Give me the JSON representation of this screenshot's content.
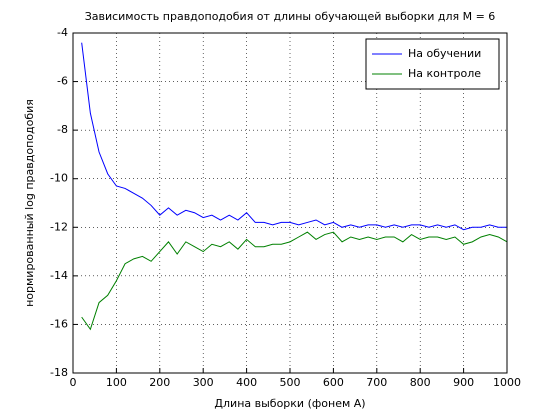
{
  "chart_data": {
    "type": "line",
    "title": "Зависимость правдоподобия от длины обучающей выборки для M = 6",
    "x_label": "Длина выборки (фонем A)",
    "y_label": "нормированный log правдоподобия",
    "x": [
      20,
      40,
      60,
      80,
      100,
      120,
      140,
      160,
      180,
      200,
      220,
      240,
      260,
      280,
      300,
      320,
      340,
      360,
      380,
      400,
      420,
      440,
      460,
      480,
      500,
      520,
      540,
      560,
      580,
      600,
      620,
      640,
      660,
      680,
      700,
      720,
      740,
      760,
      780,
      800,
      820,
      840,
      860,
      880,
      900,
      920,
      940,
      960,
      980,
      1000
    ],
    "series": [
      {
        "name": "На обучении",
        "color": "#0000ff",
        "values": [
          -4.4,
          -7.3,
          -8.9,
          -9.8,
          -10.3,
          -10.4,
          -10.6,
          -10.8,
          -11.1,
          -11.5,
          -11.2,
          -11.5,
          -11.3,
          -11.4,
          -11.6,
          -11.5,
          -11.7,
          -11.5,
          -11.7,
          -11.4,
          -11.8,
          -11.8,
          -11.9,
          -11.8,
          -11.8,
          -11.9,
          -11.8,
          -11.7,
          -11.9,
          -11.8,
          -12.0,
          -11.9,
          -12.0,
          -11.9,
          -11.9,
          -12.0,
          -11.9,
          -12.0,
          -11.9,
          -11.9,
          -12.0,
          -11.9,
          -12.0,
          -11.9,
          -12.1,
          -12.0,
          -12.0,
          -11.9,
          -12.0,
          -12.0
        ]
      },
      {
        "name": "На контроле",
        "color": "#008000",
        "values": [
          -15.7,
          -16.2,
          -15.1,
          -14.8,
          -14.2,
          -13.5,
          -13.3,
          -13.2,
          -13.4,
          -13.0,
          -12.6,
          -13.1,
          -12.6,
          -12.8,
          -13.0,
          -12.7,
          -12.8,
          -12.6,
          -12.9,
          -12.5,
          -12.8,
          -12.8,
          -12.7,
          -12.7,
          -12.6,
          -12.4,
          -12.2,
          -12.5,
          -12.3,
          -12.2,
          -12.6,
          -12.4,
          -12.5,
          -12.4,
          -12.5,
          -12.4,
          -12.4,
          -12.6,
          -12.3,
          -12.5,
          -12.4,
          -12.4,
          -12.5,
          -12.4,
          -12.7,
          -12.6,
          -12.4,
          -12.3,
          -12.4,
          -12.6
        ]
      }
    ],
    "xlim": [
      0,
      1000
    ],
    "xticks": [
      0,
      100,
      200,
      300,
      400,
      500,
      600,
      700,
      800,
      900,
      1000
    ],
    "ylim": [
      -18,
      -4
    ],
    "yticks": [
      -18,
      -16,
      -14,
      -12,
      -10,
      -8,
      -6,
      -4
    ],
    "grid": true,
    "legend": "top-right"
  }
}
